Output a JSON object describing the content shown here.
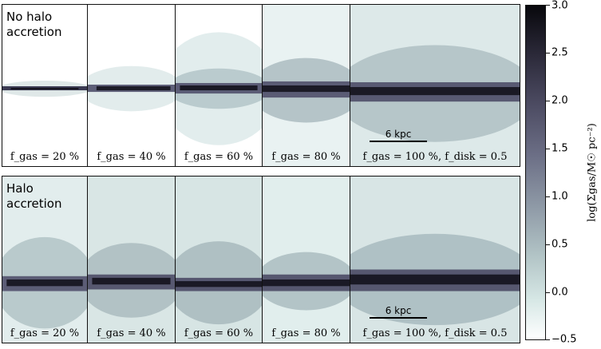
{
  "rows": [
    {
      "label": "No halo\naccretion",
      "panels": [
        "f_gas = 20 %",
        "f_gas = 40 %",
        "f_gas = 60 %",
        "f_gas = 80 %",
        "f_gas = 100 %,  f_disk = 0.5"
      ],
      "scale_bar": "6 kpc"
    },
    {
      "label": "Halo\naccretion",
      "panels": [
        "f_gas = 20 %",
        "f_gas = 40 %",
        "f_gas = 60 %",
        "f_gas = 80 %",
        "f_gas = 100 %,  f_disk = 0.5"
      ],
      "scale_bar": "6 kpc"
    }
  ],
  "colorbar": {
    "label": "log(Σgas/M☉ pc⁻²)",
    "ticks": [
      "3.0",
      "2.5",
      "2.0",
      "1.5",
      "1.0",
      "0.5",
      "0.0",
      "−0.5"
    ],
    "range": [
      -0.5,
      3.0
    ],
    "colors": [
      "#ffffff",
      "#d6e7e5",
      "#8e99a6",
      "#4d4c63",
      "#08080c"
    ]
  }
}
